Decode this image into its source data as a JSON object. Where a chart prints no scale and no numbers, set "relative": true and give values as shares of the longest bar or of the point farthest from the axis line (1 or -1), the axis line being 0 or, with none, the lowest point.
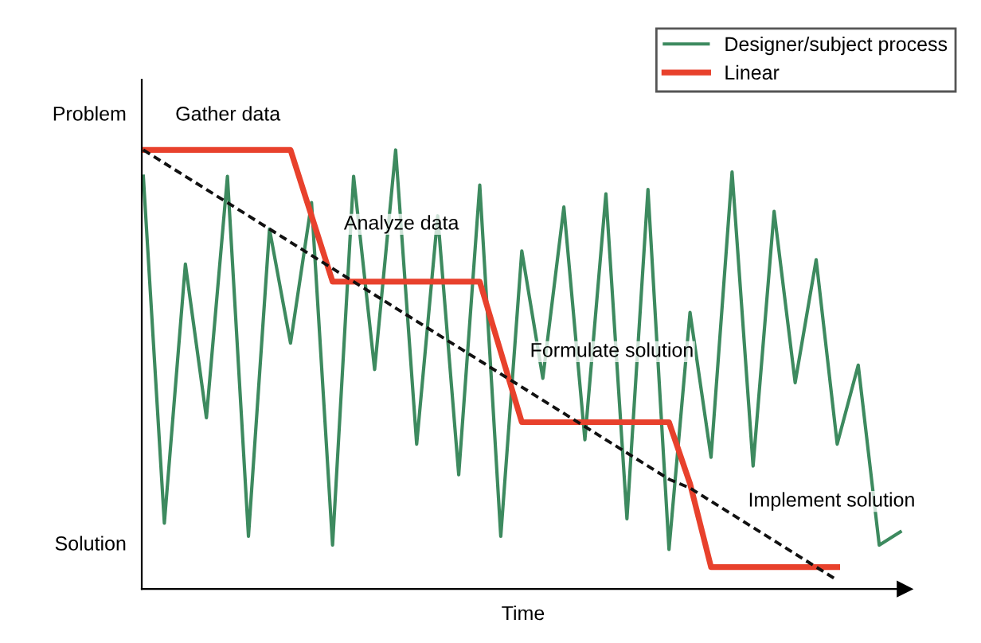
{
  "chart_data": {
    "type": "line",
    "relative": true,
    "xlabel": "Time",
    "categories": [
      null,
      null,
      null,
      null,
      null,
      null,
      null,
      null,
      null,
      null,
      null,
      null,
      null,
      null,
      null,
      null,
      null,
      null,
      null,
      null,
      null,
      null,
      null,
      null,
      null,
      null,
      null,
      null,
      null,
      null,
      null,
      null,
      null,
      null,
      null,
      null,
      null
    ],
    "series": [
      {
        "name": "Designer/subject process",
        "color": "#3d8a5f",
        "values": [
          0.94,
          0.15,
          0.74,
          0.39,
          0.94,
          0.12,
          0.82,
          0.56,
          0.88,
          0.1,
          0.94,
          0.5,
          1.0,
          0.33,
          0.85,
          0.26,
          0.92,
          0.12,
          0.77,
          0.48,
          0.87,
          0.34,
          0.9,
          0.16,
          0.91,
          0.09,
          0.63,
          0.3,
          0.95,
          0.28,
          0.86,
          0.47,
          0.75,
          0.33,
          0.51,
          0.1,
          0.13
        ]
      },
      {
        "name": "Linear",
        "color": "#e8412c",
        "values": [
          1.0,
          1.0,
          1.0,
          1.0,
          1.0,
          1.0,
          1.0,
          1.0,
          0.85,
          0.7,
          0.7,
          0.7,
          0.7,
          0.7,
          0.7,
          0.7,
          0.7,
          0.54,
          0.38,
          0.38,
          0.38,
          0.38,
          0.38,
          0.38,
          0.38,
          0.38,
          0.24,
          0.05,
          0.05,
          0.05,
          0.05,
          0.05,
          0.05,
          0.05,
          null,
          null,
          null
        ]
      },
      {
        "color": "#111111",
        "line_style": "dashed",
        "values": [
          1.0,
          0.97,
          0.94,
          0.91,
          0.88,
          0.85,
          0.82,
          0.79,
          0.76,
          0.73,
          0.7,
          0.67,
          0.64,
          0.61,
          0.58,
          0.55,
          0.52,
          0.49,
          0.46,
          0.43,
          0.4,
          0.37,
          0.34,
          0.31,
          0.28,
          0.25,
          0.23,
          0.2,
          0.17,
          0.14,
          0.11,
          0.08,
          0.05,
          0.02,
          null,
          null,
          null
        ]
      }
    ],
    "annotations": [
      "Problem",
      "Solution",
      "Gather data",
      "Analyze data",
      "Formulate solution",
      "Implement solution"
    ],
    "legend": "top right"
  }
}
